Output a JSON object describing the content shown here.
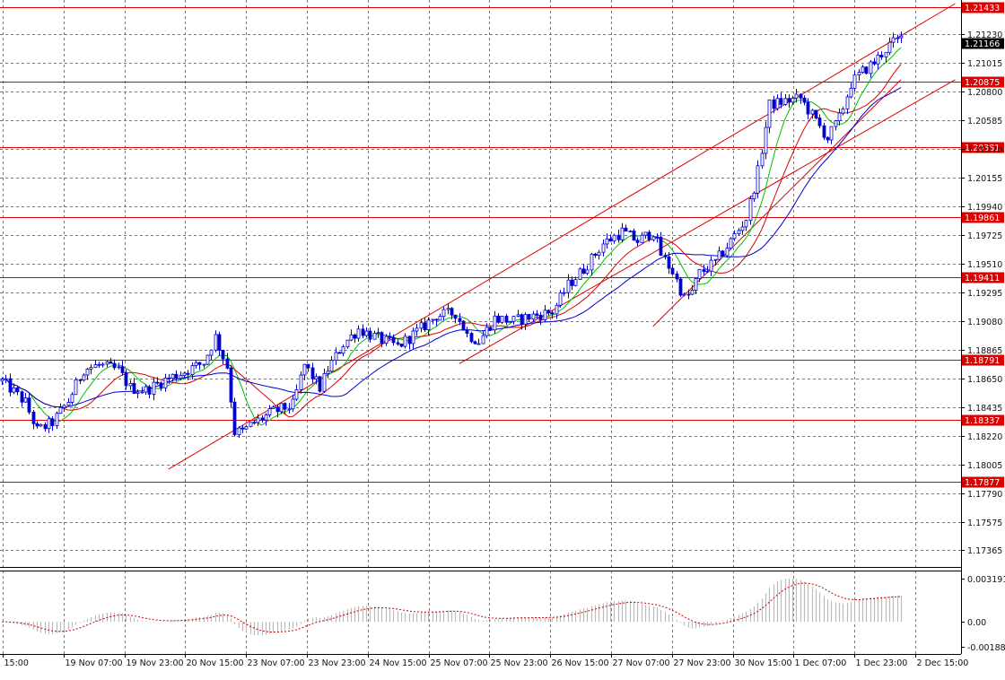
{
  "chart_data": [
    {
      "type": "candlestick",
      "title": "",
      "price_scale": {
        "ylim": [
          1.1725,
          1.2146
        ],
        "tick_labels": [
          "1.21230",
          "1.21015",
          "1.20800",
          "1.20585",
          "1.20370",
          "1.20155",
          "1.19940",
          "1.19725",
          "1.19510",
          "1.19295",
          "1.19080",
          "1.18865",
          "1.18650",
          "1.18435",
          "1.18220",
          "1.18005",
          "1.17790",
          "1.17575",
          "1.17365"
        ],
        "tick_values": [
          1.2123,
          1.21015,
          1.208,
          1.20585,
          1.2037,
          1.20155,
          1.1994,
          1.19725,
          1.1951,
          1.19295,
          1.1908,
          1.18865,
          1.1865,
          1.18435,
          1.1822,
          1.18005,
          1.1779,
          1.17575,
          1.17365
        ]
      },
      "time_scale": {
        "labels": [
          "15:00",
          "19 Nov 07:00",
          "19 Nov 23:00",
          "20 Nov 15:00",
          "23 Nov 07:00",
          "23 Nov 23:00",
          "24 Nov 15:00",
          "25 Nov 07:00",
          "25 Nov 23:00",
          "26 Nov 15:00",
          "27 Nov 07:00",
          "27 Nov 23:00",
          "30 Nov 15:00",
          "1 Dec 07:00",
          "1 Dec 23:00",
          "2 Dec 15:00"
        ],
        "bar_count": 248
      },
      "current_price": "1.21166",
      "horizontal_levels": [
        {
          "label": "1.21433",
          "value": 1.21433
        },
        {
          "label": "1.20875",
          "value": 1.20875
        },
        {
          "label": "1.20381",
          "value": 1.20381
        },
        {
          "label": "1.19861",
          "value": 1.19861
        },
        {
          "label": "1.19411",
          "value": 1.19411
        },
        {
          "label": "1.18791",
          "value": 1.18791
        },
        {
          "label": "1.18337",
          "value": 1.18337
        },
        {
          "label": "1.17877",
          "value": 1.17877
        }
      ],
      "trend_lines": [
        {
          "from": [
            43,
            1.1797
          ],
          "to": [
            246,
            1.2146
          ]
        },
        {
          "from": [
            118,
            1.1876
          ],
          "to": [
            246,
            1.2089
          ]
        },
        {
          "from": [
            168,
            1.1904
          ],
          "to": [
            232,
            1.2089
          ]
        }
      ],
      "price_path": [
        [
          0,
          1.1863
        ],
        [
          6,
          1.1847
        ],
        [
          9,
          1.1826
        ],
        [
          13,
          1.1832
        ],
        [
          17,
          1.1848
        ],
        [
          21,
          1.1872
        ],
        [
          25,
          1.1875
        ],
        [
          30,
          1.1871
        ],
        [
          33,
          1.1858
        ],
        [
          37,
          1.1856
        ],
        [
          42,
          1.1864
        ],
        [
          47,
          1.187
        ],
        [
          52,
          1.1877
        ],
        [
          55,
          1.1896
        ],
        [
          58,
          1.1874
        ],
        [
          60,
          1.1825
        ],
        [
          62,
          1.1825
        ],
        [
          65,
          1.1832
        ],
        [
          70,
          1.184
        ],
        [
          75,
          1.1845
        ],
        [
          78,
          1.1875
        ],
        [
          82,
          1.1858
        ],
        [
          84,
          1.1872
        ],
        [
          88,
          1.1891
        ],
        [
          92,
          1.1902
        ],
        [
          97,
          1.1895
        ],
        [
          102,
          1.1889
        ],
        [
          107,
          1.19
        ],
        [
          112,
          1.1912
        ],
        [
          117,
          1.1914
        ],
        [
          120,
          1.1898
        ],
        [
          123,
          1.1893
        ],
        [
          127,
          1.191
        ],
        [
          132,
          1.1908
        ],
        [
          137,
          1.1912
        ],
        [
          142,
          1.1915
        ],
        [
          146,
          1.1935
        ],
        [
          150,
          1.1947
        ],
        [
          155,
          1.1966
        ],
        [
          160,
          1.1975
        ],
        [
          164,
          1.1968
        ],
        [
          168,
          1.1975
        ],
        [
          170,
          1.1958
        ],
        [
          173,
          1.1945
        ],
        [
          176,
          1.1925
        ],
        [
          178,
          1.193
        ],
        [
          180,
          1.1944
        ],
        [
          184,
          1.1952
        ],
        [
          188,
          1.1968
        ],
        [
          192,
          1.1985
        ],
        [
          195,
          1.202
        ],
        [
          198,
          1.207
        ],
        [
          202,
          1.2073
        ],
        [
          206,
          1.2075
        ],
        [
          210,
          1.2058
        ],
        [
          213,
          1.2045
        ],
        [
          216,
          1.206
        ],
        [
          219,
          1.2086
        ],
        [
          222,
          1.2095
        ],
        [
          225,
          1.2102
        ],
        [
          229,
          1.2115
        ],
        [
          232,
          1.212
        ]
      ],
      "moving_averages": [
        {
          "color": "#00c000",
          "period": "fast"
        },
        {
          "color": "#dd0000",
          "period": "medium"
        },
        {
          "color": "#0000cc",
          "period": "slow"
        }
      ],
      "indicator": {
        "tick_labels": [
          "0.003191",
          "0.00",
          "-0.001882"
        ],
        "ylim": [
          -0.00225,
          0.0036
        ],
        "signal_color": "#cc0000",
        "histogram_color": "#bbbbbb"
      },
      "colors": {
        "candle": "#0000cc",
        "level_line": "#dd0000",
        "level_label_bg": "#dd0000",
        "current_price_bg": "#000000",
        "grid": "#777777"
      }
    }
  ]
}
